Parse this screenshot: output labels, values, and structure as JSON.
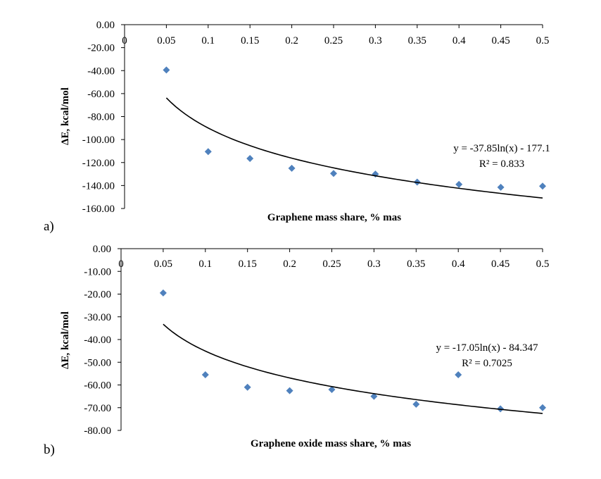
{
  "chart_data": [
    {
      "type": "scatter",
      "panel_label": "a)",
      "title": "",
      "xlabel": "Graphene mass share, % mas",
      "ylabel": "ΔE, kcal/mol",
      "xlim": [
        0,
        0.5
      ],
      "ylim": [
        -160,
        0
      ],
      "x_ticks": [
        0,
        0.05,
        0.1,
        0.15,
        0.2,
        0.25,
        0.3,
        0.35,
        0.4,
        0.45,
        0.5
      ],
      "x_tick_labels": [
        "0",
        "0.05",
        "0.1",
        "0.15",
        "0.2",
        "0.25",
        "0.3",
        "0.35",
        "0.4",
        "0.45",
        "0.5"
      ],
      "y_ticks": [
        0,
        -20,
        -40,
        -60,
        -80,
        -100,
        -120,
        -140,
        -160
      ],
      "y_tick_labels": [
        "0.00",
        "-20.00",
        "-40.00",
        "-60.00",
        "-80.00",
        "-100.00",
        "-120.00",
        "-140.00",
        "-160.00"
      ],
      "series": [
        {
          "name": "data",
          "marker": "diamond",
          "color": "#4f81bd",
          "x": [
            0.05,
            0.1,
            0.15,
            0.2,
            0.25,
            0.3,
            0.35,
            0.4,
            0.45,
            0.5
          ],
          "y": [
            -39.5,
            -110.5,
            -116.5,
            -125,
            -129.5,
            -130,
            -137,
            -139,
            -141.5,
            -140.5
          ]
        }
      ],
      "trendline": {
        "type": "log",
        "a": -37.85,
        "b": -177.1,
        "x_start": 0.05,
        "x_end": 0.5,
        "color": "#000000"
      },
      "equation": "y = -37.85ln(x)  - 177.1",
      "r2_text": "R² = 0.833"
    },
    {
      "type": "scatter",
      "panel_label": "b)",
      "title": "",
      "xlabel": "Graphene oxide mass share, % mas",
      "ylabel": "ΔE, kcal/mol",
      "xlim": [
        0,
        0.5
      ],
      "ylim": [
        -80,
        0
      ],
      "x_ticks": [
        0,
        0.05,
        0.1,
        0.15,
        0.2,
        0.25,
        0.3,
        0.35,
        0.4,
        0.45,
        0.5
      ],
      "x_tick_labels": [
        "0",
        "0.05",
        "0.1",
        "0.15",
        "0.2",
        "0.25",
        "0.3",
        "0.35",
        "0.4",
        "0.45",
        "0.5"
      ],
      "y_ticks": [
        0,
        -10,
        -20,
        -30,
        -40,
        -50,
        -60,
        -70,
        -80
      ],
      "y_tick_labels": [
        "0.00",
        "-10.00",
        "-20.00",
        "-30.00",
        "-40.00",
        "-50.00",
        "-60.00",
        "-70.00",
        "-80.00"
      ],
      "series": [
        {
          "name": "data",
          "marker": "diamond",
          "color": "#4f81bd",
          "x": [
            0.05,
            0.1,
            0.15,
            0.2,
            0.25,
            0.3,
            0.35,
            0.4,
            0.45,
            0.5
          ],
          "y": [
            -19.5,
            -55.5,
            -61,
            -62.5,
            -62,
            -65,
            -68.5,
            -55.5,
            -70.5,
            -70
          ]
        }
      ],
      "trendline": {
        "type": "log",
        "a": -17.05,
        "b": -84.347,
        "x_start": 0.05,
        "x_end": 0.5,
        "color": "#000000"
      },
      "equation": "y = -17.05ln(x)  - 84.347",
      "r2_text": "R² = 0.7025"
    }
  ]
}
